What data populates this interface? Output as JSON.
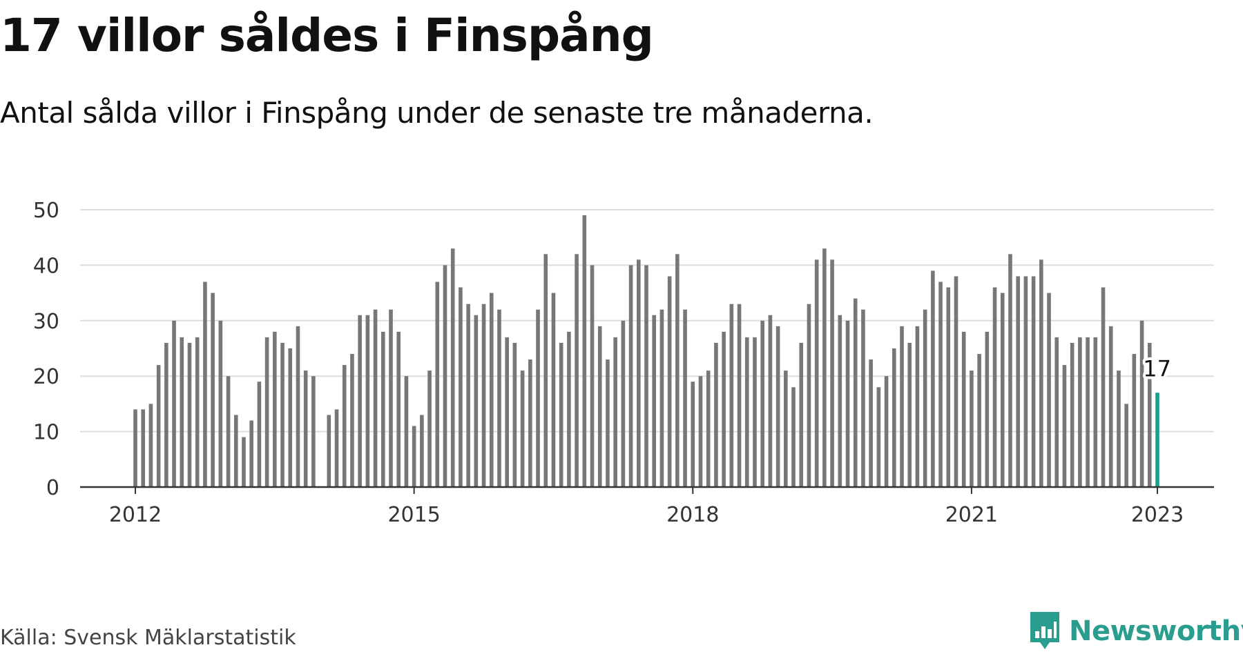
{
  "title": "17 villor såldes i Finspång",
  "subtitle": "Antal sålda villor i Finspång under de senaste tre månaderna.",
  "source": "Källa: Svensk Mäklarstatistik",
  "brand": {
    "name": "Newsworthy",
    "icon": "newsworthy-logo-icon",
    "color": "#2a9d8f"
  },
  "colors": {
    "bar": "#777777",
    "highlight": "#1a9e8f",
    "grid": "#dddddd",
    "axis": "#333333"
  },
  "chart_data": {
    "type": "bar",
    "title": "17 villor såldes i Finspång",
    "subtitle": "Antal sålda villor i Finspång under de senaste tre månaderna.",
    "x_start": "2012-01",
    "x_end": "2023-01",
    "frequency": "monthly",
    "x_ticks": [
      "2012",
      "2015",
      "2018",
      "2021",
      "2023"
    ],
    "y_ticks": [
      0,
      10,
      20,
      30,
      40,
      50
    ],
    "ylim": [
      0,
      50
    ],
    "grid": true,
    "series": [
      {
        "values": [
          14,
          14,
          15,
          22,
          26,
          30,
          27,
          26,
          27,
          37,
          35,
          30,
          20,
          13,
          9,
          12,
          19,
          27,
          28,
          26,
          25,
          29,
          21,
          20,
          null,
          13,
          14,
          22,
          24,
          31,
          31,
          32,
          28,
          32,
          28,
          20,
          11,
          13,
          21,
          37,
          40,
          43,
          36,
          33,
          31,
          33,
          35,
          32,
          27,
          26,
          21,
          23,
          32,
          42,
          35,
          26,
          28,
          42,
          49,
          40,
          29,
          23,
          27,
          30,
          40,
          41,
          40,
          31,
          32,
          38,
          42,
          32,
          19,
          20,
          21,
          26,
          28,
          33,
          33,
          27,
          27,
          30,
          31,
          29,
          21,
          18,
          26,
          33,
          41,
          43,
          41,
          31,
          30,
          34,
          32,
          23,
          18,
          20,
          25,
          29,
          26,
          29,
          32,
          39,
          37,
          36,
          38,
          28,
          21,
          24,
          28,
          36,
          35,
          42,
          38,
          38,
          38,
          41,
          35,
          27,
          22,
          26,
          27,
          27,
          27,
          36,
          29,
          21,
          15,
          24,
          30,
          26,
          17
        ]
      }
    ],
    "highlight": {
      "x": "2023-01",
      "value": 17,
      "label": "17"
    }
  }
}
